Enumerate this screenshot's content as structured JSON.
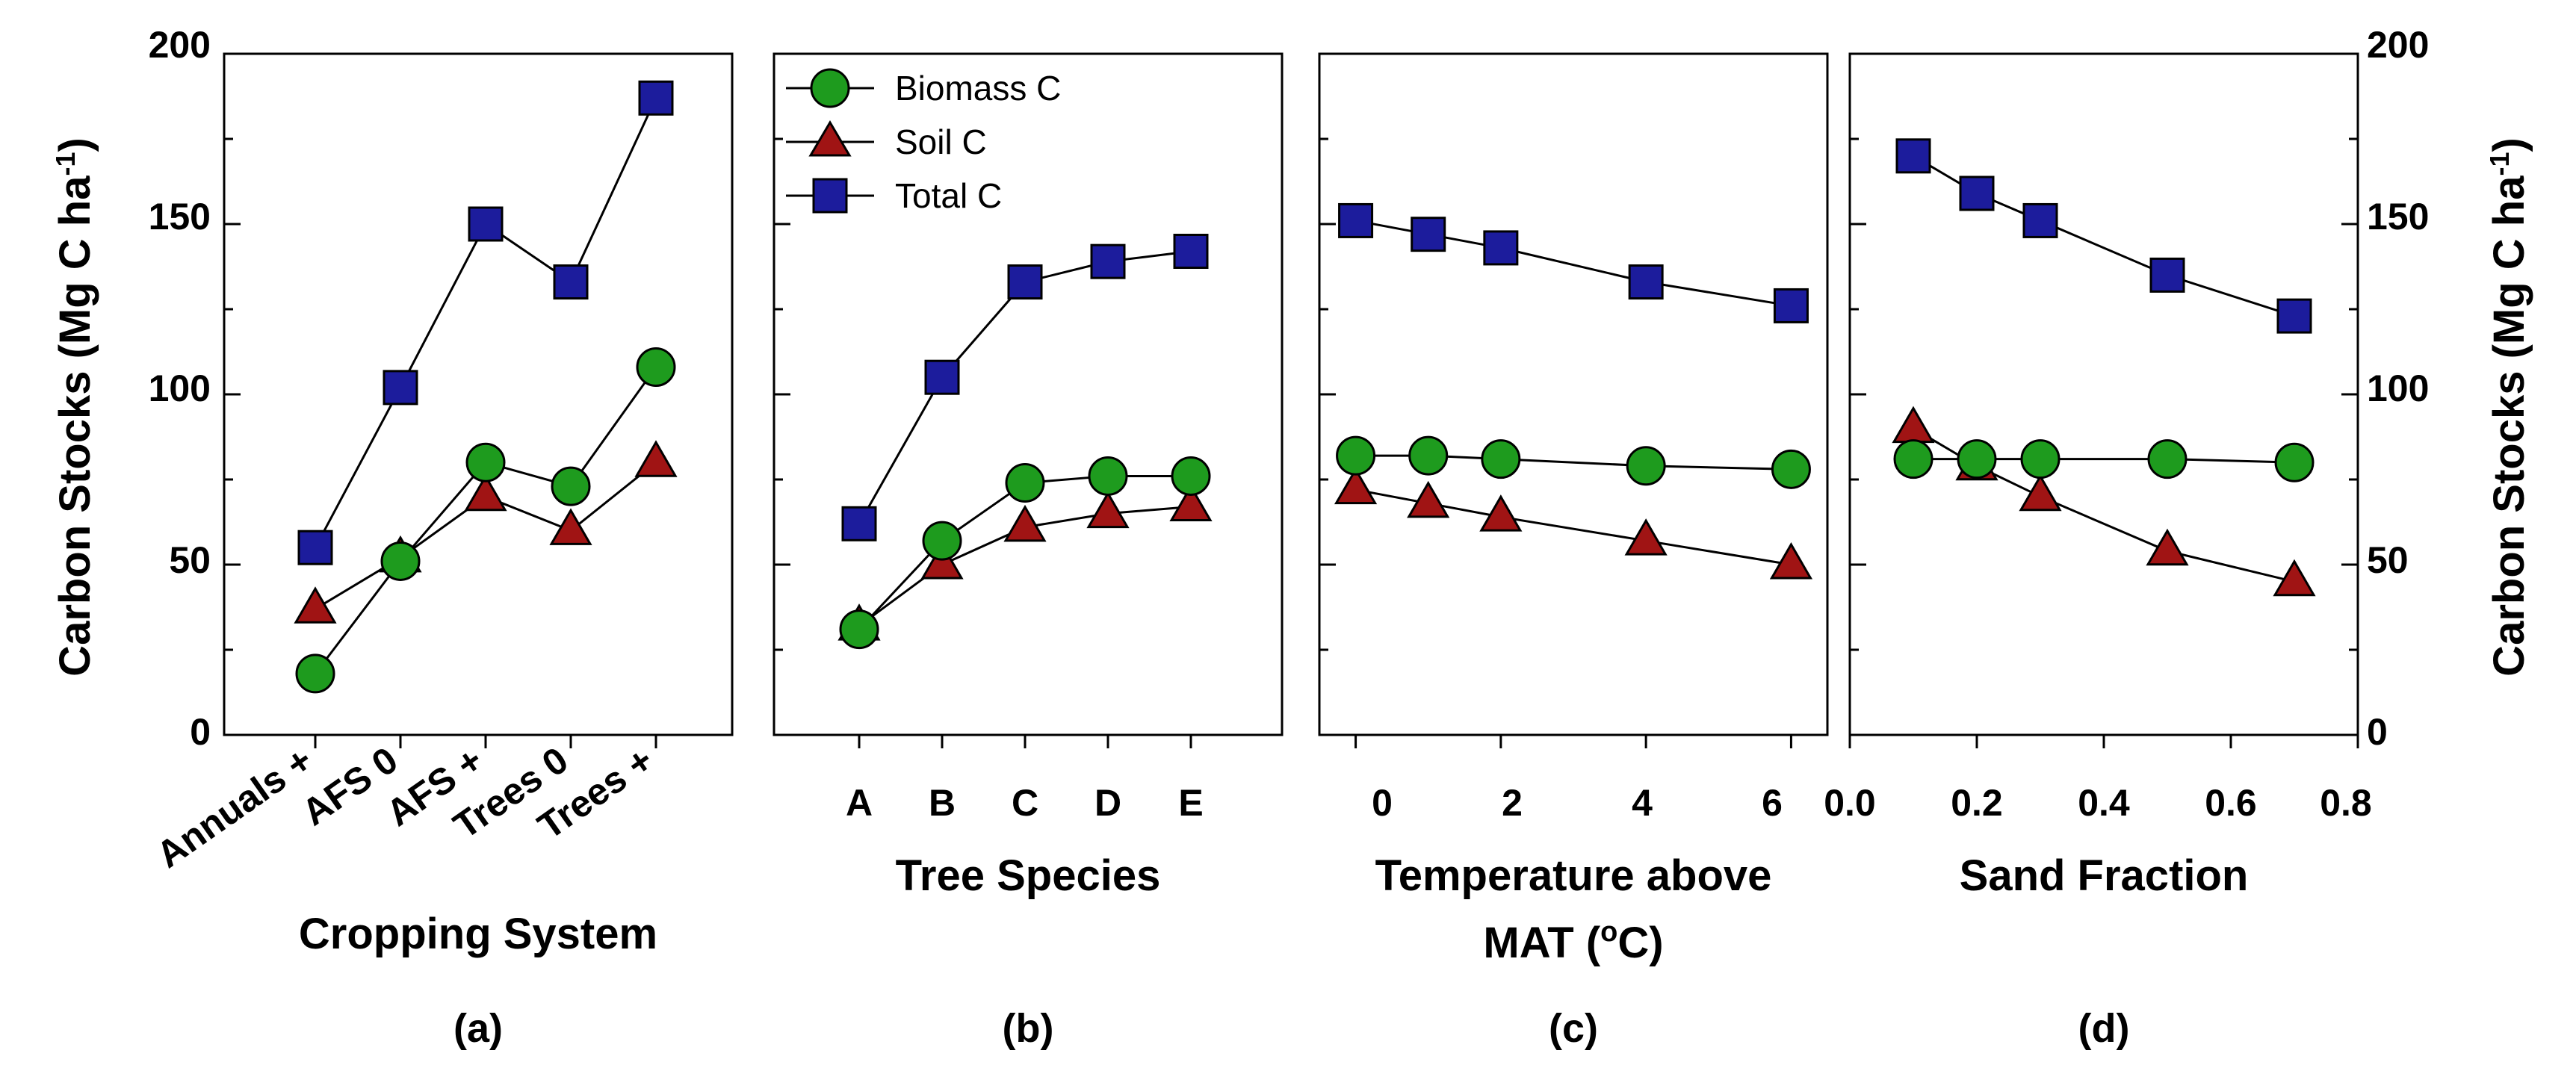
{
  "y_axis": {
    "left_label": "Carbon Stocks (Mg C ha",
    "right_label": "Carbon Stocks (Mg C ha",
    "label_superscript": "-1",
    "label_close": ")",
    "ticks": [
      "0",
      "50",
      "100",
      "150",
      "200"
    ]
  },
  "legend": {
    "placement": "top-left of panel (b)",
    "entries": [
      {
        "label": "Biomass C",
        "marker": "circle",
        "color": "#1e9b1e"
      },
      {
        "label": "Soil C",
        "marker": "triangle",
        "color": "#a01414"
      },
      {
        "label": "Total C",
        "marker": "square",
        "color": "#1c1c9c"
      }
    ]
  },
  "chart_data": [
    {
      "type": "line",
      "panel_label": "(a)",
      "xlabel": "Cropping System",
      "categories": [
        "Annuals +",
        "AFS 0",
        "AFS +",
        "Trees 0",
        "Trees +"
      ],
      "ylim": [
        0,
        200
      ],
      "series": [
        {
          "name": "Biomass C",
          "values": [
            18,
            51,
            80,
            73,
            108
          ]
        },
        {
          "name": "Soil C",
          "values": [
            37,
            52,
            70,
            60,
            80
          ]
        },
        {
          "name": "Total C",
          "values": [
            55,
            102,
            150,
            133,
            187
          ]
        }
      ]
    },
    {
      "type": "line",
      "panel_label": "(b)",
      "xlabel": "Tree Species",
      "categories": [
        "A",
        "B",
        "C",
        "D",
        "E"
      ],
      "ylim": [
        0,
        200
      ],
      "series": [
        {
          "name": "Biomass C",
          "values": [
            31,
            57,
            74,
            76,
            76
          ]
        },
        {
          "name": "Soil C",
          "values": [
            32,
            50,
            61,
            65,
            67
          ]
        },
        {
          "name": "Total C",
          "values": [
            62,
            105,
            133,
            139,
            142
          ]
        }
      ]
    },
    {
      "type": "line",
      "panel_label": "(c)",
      "xlabel": "Temperature above",
      "xlabel_line2_prefix": "MAT (",
      "xlabel_line2_superscript": "o",
      "xlabel_line2_suffix": "C)",
      "x": [
        0,
        1,
        2,
        4,
        6
      ],
      "xticks": [
        "0",
        "2",
        "4",
        "6"
      ],
      "xlim": [
        -0.5,
        6.5
      ],
      "ylim": [
        0,
        200
      ],
      "series": [
        {
          "name": "Biomass C",
          "values": [
            82,
            82,
            81,
            79,
            78
          ]
        },
        {
          "name": "Soil C",
          "values": [
            72,
            68,
            64,
            57,
            50
          ]
        },
        {
          "name": "Total C",
          "values": [
            151,
            147,
            143,
            133,
            126
          ]
        }
      ]
    },
    {
      "type": "line",
      "panel_label": "(d)",
      "xlabel": "Sand Fraction",
      "x": [
        0.1,
        0.2,
        0.3,
        0.5,
        0.7
      ],
      "xticks": [
        "0.0",
        "0.2",
        "0.4",
        "0.6",
        "0.8"
      ],
      "xlim": [
        0.0,
        0.8
      ],
      "ylim": [
        0,
        200
      ],
      "series": [
        {
          "name": "Biomass C",
          "values": [
            81,
            81,
            81,
            81,
            80
          ]
        },
        {
          "name": "Soil C",
          "values": [
            90,
            79,
            70,
            54,
            45
          ]
        },
        {
          "name": "Total C",
          "values": [
            170,
            159,
            151,
            135,
            123
          ]
        }
      ]
    }
  ]
}
